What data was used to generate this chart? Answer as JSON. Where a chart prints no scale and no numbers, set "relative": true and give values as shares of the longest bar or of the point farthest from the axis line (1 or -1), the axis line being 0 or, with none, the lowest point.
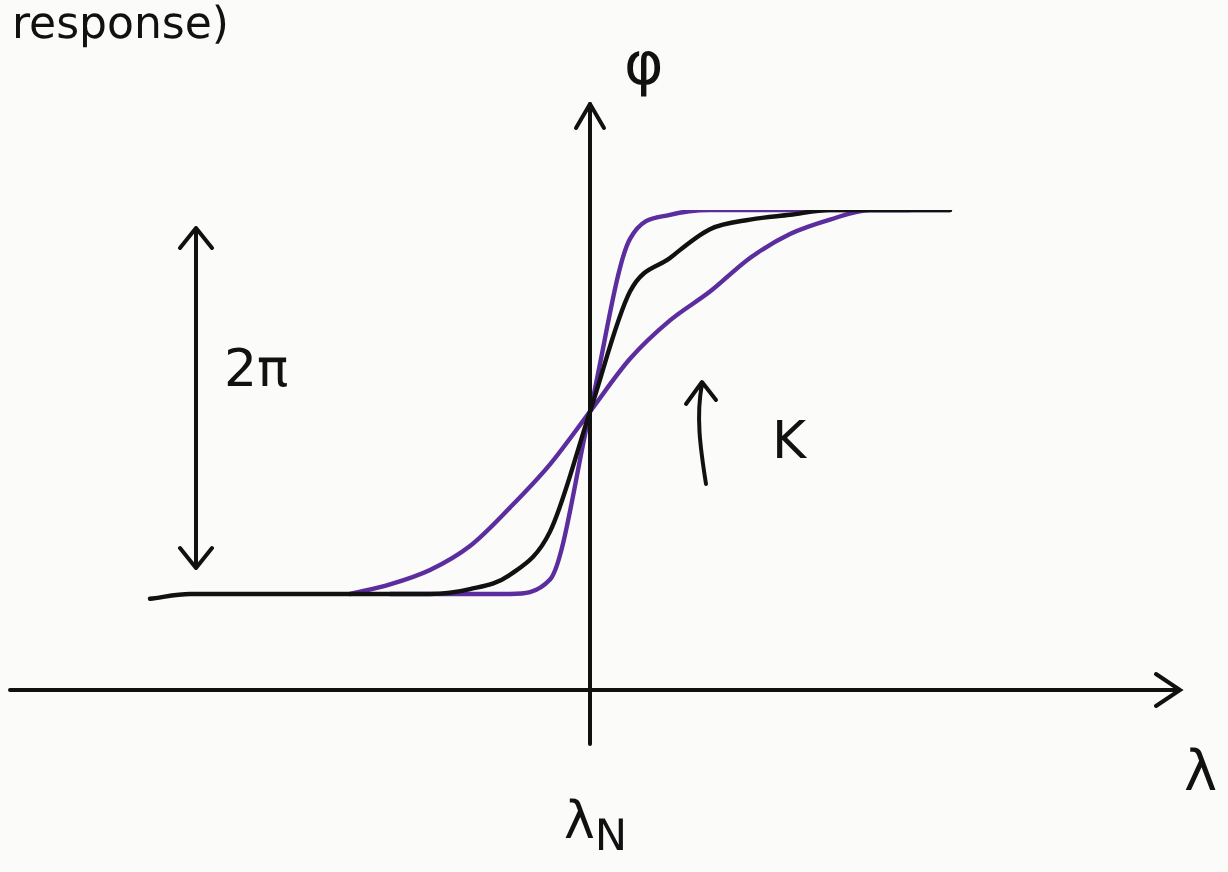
{
  "chart_data": {
    "type": "line",
    "relative": true,
    "xlabel": "λ",
    "ylabel": "φ",
    "categories": [
      null,
      null,
      null,
      null,
      null,
      null,
      null,
      null,
      null,
      null,
      null,
      null,
      null,
      null,
      null,
      null,
      null,
      null,
      null,
      null,
      null,
      null,
      null,
      null,
      null,
      null,
      null,
      null,
      null,
      null
    ],
    "series": [
      {
        "color": "#111111",
        "values": [
          null,
          null,
          null,
          0.19,
          0.2,
          0.2,
          0.2,
          0.2,
          0.2,
          0.2,
          0.2,
          0.21,
          0.24,
          0.33,
          0.58,
          0.83,
          0.9,
          0.96,
          0.98,
          0.99,
          1,
          1,
          1,
          1,
          null,
          null,
          null,
          null,
          null,
          null
        ]
      },
      {
        "color": "#5b2d9e",
        "values": [
          null,
          null,
          null,
          null,
          null,
          null,
          null,
          null,
          null,
          0.2,
          0.2,
          0.2,
          0.2,
          0.23,
          0.58,
          0.94,
          0.99,
          1,
          1,
          1,
          1,
          1,
          1,
          null,
          null,
          null,
          null,
          null,
          null,
          null
        ]
      },
      {
        "color": "#5b2d9e",
        "values": [
          null,
          null,
          null,
          null,
          null,
          null,
          null,
          null,
          0.2,
          0.22,
          0.25,
          0.3,
          0.38,
          0.47,
          0.58,
          0.69,
          0.77,
          0.83,
          0.9,
          0.95,
          0.98,
          1,
          1,
          1,
          null,
          null,
          null,
          null,
          null,
          null
        ]
      }
    ],
    "annotations": [
      "response)",
      "2π",
      "K",
      "λ$_{N}$"
    ],
    "legend": false,
    "marker": "none",
    "line_style": "solid"
  }
}
